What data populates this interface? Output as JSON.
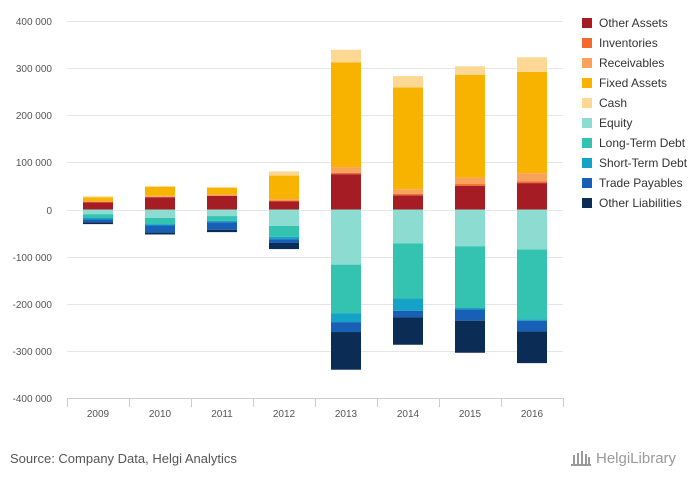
{
  "chart_data": {
    "type": "bar",
    "stacked": true,
    "categories": [
      "2009",
      "2010",
      "2011",
      "2012",
      "2013",
      "2014",
      "2015",
      "2016"
    ],
    "ylim": [
      -400000,
      400000
    ],
    "yticks": [
      "400 000",
      "300 000",
      "200 000",
      "100 000",
      "0",
      "-100 000",
      "-200 000",
      "-300 000",
      "-400 000"
    ],
    "grid": true,
    "legend_position": "right",
    "series": [
      {
        "name": "Other Assets",
        "color": "#a51c24",
        "values": [
          15000,
          26000,
          29000,
          17000,
          75000,
          30000,
          50000,
          56000
        ]
      },
      {
        "name": "Inventories",
        "color": "#f26a2e",
        "values": [
          1000,
          1000,
          1000,
          2000,
          3000,
          3000,
          4000,
          4000
        ]
      },
      {
        "name": "Receivables",
        "color": "#f9a25b",
        "values": [
          2000,
          2000,
          2000,
          3000,
          12000,
          10000,
          14000,
          17000
        ]
      },
      {
        "name": "Fixed Assets",
        "color": "#f8b300",
        "values": [
          8000,
          19000,
          14000,
          50000,
          222000,
          216000,
          218000,
          215000
        ]
      },
      {
        "name": "Cash",
        "color": "#fdd894",
        "values": [
          2000,
          2000,
          2000,
          9000,
          27000,
          24000,
          18000,
          31000
        ]
      },
      {
        "name": "Equity",
        "color": "#8ddcd1",
        "values": [
          -10000,
          -18000,
          -14000,
          -35000,
          -117000,
          -72000,
          -78000,
          -85000
        ]
      },
      {
        "name": "Long-Term Debt",
        "color": "#33c3b0",
        "values": [
          -8000,
          -13000,
          -10000,
          -23000,
          -103000,
          -117000,
          -131000,
          -148000
        ]
      },
      {
        "name": "Short-Term Debt",
        "color": "#14a3c7",
        "values": [
          -3000,
          -3000,
          -3000,
          -5000,
          -19000,
          -26000,
          -3000,
          -3000
        ]
      },
      {
        "name": "Trade Payables",
        "color": "#1760b5",
        "values": [
          -6000,
          -15000,
          -16000,
          -8000,
          -21000,
          -14000,
          -24000,
          -23000
        ]
      },
      {
        "name": "Other Liabilities",
        "color": "#0b2d55",
        "values": [
          -4000,
          -4000,
          -5000,
          -13000,
          -80000,
          -58000,
          -68000,
          -67000
        ]
      }
    ]
  },
  "footer": {
    "source": "Source: Company Data, Helgi Analytics",
    "brand": "HelgiLibrary"
  }
}
